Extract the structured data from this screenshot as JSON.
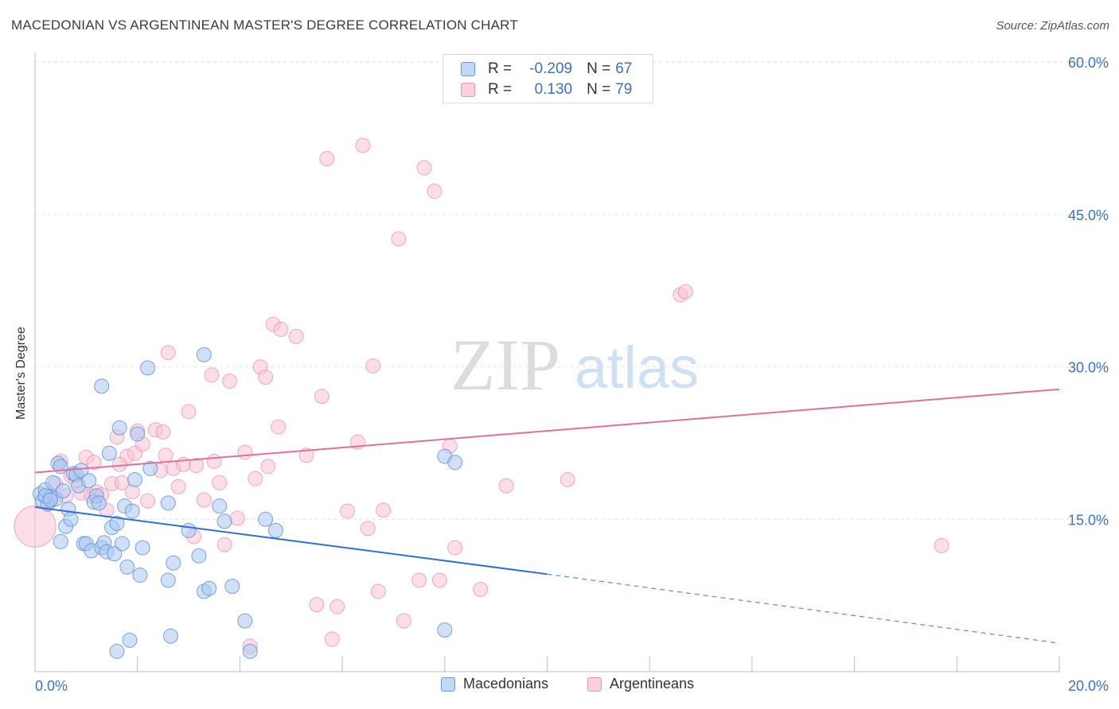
{
  "title": "MACEDONIAN VS ARGENTINEAN MASTER'S DEGREE CORRELATION CHART",
  "source": "Source: ZipAtlas.com",
  "colors": {
    "blue_fill": "#a9c8f0",
    "blue_stroke": "#5b8fd6",
    "blue_line": "#2e6fd0",
    "pink_fill": "#f7c2d3",
    "pink_stroke": "#e88aa8",
    "pink_line": "#e0709a",
    "axis_text": "#3b72c8"
  },
  "stats": [
    {
      "r_label": "R =",
      "r_value": "-0.209",
      "n_label": "N =",
      "n_value": "67"
    },
    {
      "r_label": "R =",
      "r_value": "0.130",
      "n_label": "N =",
      "n_value": "79"
    }
  ],
  "legend": {
    "macedonians": "Macedonians",
    "argentineans": "Argentineans"
  },
  "watermark": {
    "zip": "ZIP",
    "atlas": "atlas"
  },
  "chart_data": {
    "type": "scatter",
    "title": "MACEDONIAN VS ARGENTINEAN MASTER'S DEGREE CORRELATION CHART",
    "xlabel": "",
    "ylabel": "Master's Degree",
    "xlim": [
      0,
      20
    ],
    "ylim": [
      0,
      62
    ],
    "x_tick_labels": [
      "0.0%",
      "20.0%"
    ],
    "y_tick_labels": [
      "15.0%",
      "30.0%",
      "45.0%",
      "60.0%"
    ],
    "y_ticks": [
      15,
      30,
      45,
      60
    ],
    "grid": true,
    "legend_position": "bottom",
    "series": [
      {
        "name": "Macedonians",
        "r": -0.209,
        "n": 67,
        "trend": {
          "x0": 0,
          "y0": 16.2,
          "x1": 10,
          "y1": 9.6,
          "dashed_to_x": 20,
          "dashed_to_y": 2.8
        },
        "points": [
          [
            0.1,
            17.5
          ],
          [
            0.15,
            16.8
          ],
          [
            0.2,
            17.9
          ],
          [
            0.25,
            16.5
          ],
          [
            0.3,
            17.2
          ],
          [
            0.35,
            18.6
          ],
          [
            0.4,
            17.0
          ],
          [
            0.45,
            20.5
          ],
          [
            0.5,
            20.2
          ],
          [
            0.5,
            12.8
          ],
          [
            0.6,
            14.3
          ],
          [
            0.65,
            16.0
          ],
          [
            0.7,
            15.0
          ],
          [
            0.75,
            19.5
          ],
          [
            0.8,
            19.4
          ],
          [
            0.85,
            18.3
          ],
          [
            0.9,
            19.8
          ],
          [
            0.95,
            12.6
          ],
          [
            1.0,
            12.6
          ],
          [
            1.05,
            18.8
          ],
          [
            1.1,
            11.9
          ],
          [
            1.15,
            16.7
          ],
          [
            1.2,
            17.3
          ],
          [
            1.25,
            16.6
          ],
          [
            1.3,
            12.2
          ],
          [
            1.35,
            12.7
          ],
          [
            1.4,
            11.8
          ],
          [
            1.45,
            21.5
          ],
          [
            1.5,
            14.2
          ],
          [
            1.55,
            11.6
          ],
          [
            1.6,
            14.6
          ],
          [
            1.65,
            24.0
          ],
          [
            1.7,
            12.6
          ],
          [
            1.75,
            16.3
          ],
          [
            1.8,
            10.3
          ],
          [
            1.85,
            3.1
          ],
          [
            1.9,
            15.8
          ],
          [
            1.95,
            18.9
          ],
          [
            2.05,
            9.5
          ],
          [
            2.1,
            12.2
          ],
          [
            2.2,
            29.9
          ],
          [
            2.25,
            20.0
          ],
          [
            1.6,
            2.0
          ],
          [
            1.3,
            28.1
          ],
          [
            2.6,
            16.6
          ],
          [
            2.6,
            9.0
          ],
          [
            2.65,
            3.5
          ],
          [
            2.7,
            10.7
          ],
          [
            3.0,
            13.9
          ],
          [
            3.2,
            11.4
          ],
          [
            3.3,
            7.9
          ],
          [
            3.4,
            8.2
          ],
          [
            3.6,
            16.3
          ],
          [
            3.7,
            14.8
          ],
          [
            3.85,
            8.4
          ],
          [
            4.1,
            5.0
          ],
          [
            4.2,
            2.0
          ],
          [
            4.5,
            15.0
          ],
          [
            4.7,
            13.9
          ],
          [
            3.3,
            31.2
          ],
          [
            8.0,
            21.2
          ],
          [
            8.2,
            20.6
          ],
          [
            8.0,
            4.1
          ],
          [
            2.0,
            23.4
          ],
          [
            0.2,
            17.3
          ],
          [
            0.3,
            16.9
          ],
          [
            0.55,
            17.8
          ]
        ]
      },
      {
        "name": "Argentineans",
        "r": 0.13,
        "n": 79,
        "trend": {
          "x0": 0,
          "y0": 19.6,
          "x1": 20,
          "y1": 27.8
        },
        "points": [
          [
            0.0,
            14.3
          ],
          [
            0.3,
            16.8
          ],
          [
            0.4,
            18.5
          ],
          [
            0.5,
            20.7
          ],
          [
            0.6,
            17.3
          ],
          [
            0.7,
            19.3
          ],
          [
            0.8,
            18.8
          ],
          [
            0.9,
            17.6
          ],
          [
            1.0,
            21.1
          ],
          [
            1.1,
            17.3
          ],
          [
            1.15,
            20.6
          ],
          [
            1.2,
            17.7
          ],
          [
            1.3,
            17.4
          ],
          [
            1.4,
            15.9
          ],
          [
            1.5,
            18.5
          ],
          [
            1.6,
            23.1
          ],
          [
            1.7,
            18.6
          ],
          [
            1.8,
            21.2
          ],
          [
            1.9,
            17.7
          ],
          [
            1.95,
            21.5
          ],
          [
            2.0,
            23.7
          ],
          [
            2.1,
            22.4
          ],
          [
            2.2,
            16.8
          ],
          [
            2.35,
            23.8
          ],
          [
            2.45,
            19.8
          ],
          [
            2.5,
            23.6
          ],
          [
            2.55,
            21.3
          ],
          [
            2.6,
            31.4
          ],
          [
            2.7,
            20.0
          ],
          [
            2.8,
            18.2
          ],
          [
            2.9,
            20.4
          ],
          [
            3.0,
            25.6
          ],
          [
            3.1,
            13.3
          ],
          [
            3.15,
            20.3
          ],
          [
            3.3,
            16.9
          ],
          [
            3.45,
            29.2
          ],
          [
            3.5,
            20.7
          ],
          [
            3.6,
            18.6
          ],
          [
            3.7,
            12.5
          ],
          [
            3.8,
            28.6
          ],
          [
            3.95,
            15.1
          ],
          [
            4.1,
            21.6
          ],
          [
            4.2,
            2.5
          ],
          [
            4.3,
            19.0
          ],
          [
            4.4,
            30.0
          ],
          [
            4.5,
            29.0
          ],
          [
            4.55,
            20.2
          ],
          [
            4.65,
            34.2
          ],
          [
            4.75,
            24.1
          ],
          [
            4.8,
            33.7
          ],
          [
            5.1,
            33.0
          ],
          [
            5.3,
            21.3
          ],
          [
            5.5,
            6.6
          ],
          [
            5.6,
            27.1
          ],
          [
            5.7,
            50.5
          ],
          [
            5.8,
            3.2
          ],
          [
            5.9,
            6.4
          ],
          [
            6.1,
            15.8
          ],
          [
            6.3,
            22.6
          ],
          [
            6.4,
            51.8
          ],
          [
            6.5,
            14.1
          ],
          [
            6.6,
            30.1
          ],
          [
            6.7,
            7.9
          ],
          [
            6.8,
            15.9
          ],
          [
            7.1,
            42.6
          ],
          [
            7.2,
            5.0
          ],
          [
            7.5,
            9.0
          ],
          [
            7.6,
            49.6
          ],
          [
            7.8,
            47.3
          ],
          [
            7.9,
            9.0
          ],
          [
            8.1,
            22.2
          ],
          [
            8.2,
            12.2
          ],
          [
            8.7,
            8.1
          ],
          [
            9.2,
            18.3
          ],
          [
            10.4,
            18.9
          ],
          [
            12.6,
            37.1
          ],
          [
            12.7,
            37.4
          ],
          [
            17.7,
            12.4
          ],
          [
            1.65,
            20.4
          ]
        ]
      }
    ]
  }
}
